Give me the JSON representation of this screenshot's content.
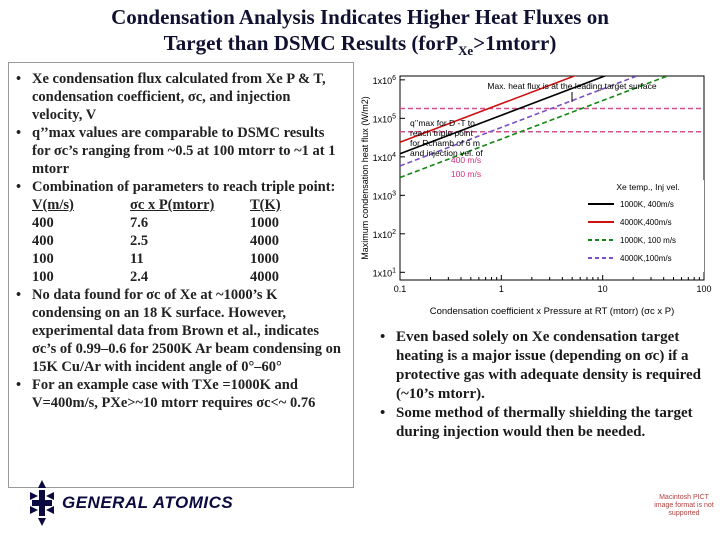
{
  "slide": {
    "title_line1": "Condensation Analysis Indicates Higher Heat Fluxes on",
    "title_line2_pre": "Target than DSMC Results (for",
    "title_line2_P": "P",
    "title_line2_sub": "Xe",
    "title_line2_post": ">1mtorr)"
  },
  "left": {
    "bullet1": "Xe condensation flux calculated from Xe P & T, condensation coefficient, σc, and injection velocity, V",
    "bullet2": "q’’max values are comparable to DSMC results for σc’s ranging from ~0.5 at 100 mtorr to ~1 at 1 mtorr",
    "bullet3": "Combination of parameters to reach triple point:",
    "table": {
      "headers": [
        "V(m/s)",
        "σc x P(mtorr)",
        "T(K)"
      ],
      "rows": [
        [
          "400",
          "7.6",
          "1000"
        ],
        [
          "400",
          "2.5",
          "4000"
        ],
        [
          "100",
          "11",
          "1000"
        ],
        [
          "100",
          "2.4",
          "4000"
        ]
      ]
    },
    "bullet4": "No data found for σc of Xe at ~1000’s K condensing on an 18 K surface. However, experimental data from Brown et al., indicates σc’s of 0.99–0.6 for 2500K Ar beam condensing on 15K Cu/Ar with incident angle of 0°–60°",
    "bullet5": "For an example case with TXe =1000K and V=400m/s, PXe>~10 mtorr requires σc<~ 0.76"
  },
  "right": {
    "bullet1": "Even based solely on Xe condensation target heating is a major issue (depending on σc) if a protective gas with adequate density is required (~10’s mtorr).",
    "bullet2": "Some method of thermally shielding the target during injection would then be needed."
  },
  "logo": {
    "text": "GENERAL ATOMICS"
  },
  "watermark": {
    "text": "Macintosh PICT image format is not supported"
  },
  "chart_data": {
    "type": "line",
    "ylabel": "Maximum condensation heat flux (W/m2)",
    "xlabel": "Condensation coefficient x Pressure at RT (mtorr) (σc x P)",
    "x_scale": "log",
    "y_scale": "log",
    "xlim": [
      0.1,
      100
    ],
    "ylim": [
      1,
      1000000
    ],
    "x_ticks": [
      "0.1",
      "1",
      "10",
      "100"
    ],
    "y_ticks": [
      "1x10^1",
      "1x10^2",
      "1x10^3",
      "1x10^4",
      "1x10^5",
      "1x10^6"
    ],
    "annotations": {
      "top": "Max. heat flux is at the leading target surface",
      "qmax": "q’’max for D -T to reach triple point for Rchamb of 6 m and injection vel. of",
      "v400": "400 m/s",
      "v100": "100 m/s"
    },
    "legend_title": "Xe temp., Inj vel.",
    "series": [
      {
        "name": "1000K, 400m/s",
        "color": "#000000",
        "dash": "solid",
        "x": [
          0.1,
          100
        ],
        "y": [
          12000,
          12000000
        ]
      },
      {
        "name": "4000K,400m/s",
        "color": "#cc1111",
        "dash": "solid",
        "x": [
          0.1,
          100
        ],
        "y": [
          24000,
          24000000
        ]
      },
      {
        "name": "1000K, 100 m/s",
        "color": "#118811",
        "dash": "dashed",
        "x": [
          0.1,
          100
        ],
        "y": [
          2900,
          2900000
        ]
      },
      {
        "name": "4000K,100m/s",
        "color": "#7a4fc4",
        "dash": "dashed",
        "x": [
          0.1,
          100
        ],
        "y": [
          5800,
          5800000
        ]
      }
    ],
    "reference_lines": [
      {
        "label": "400 m/s",
        "y": 180000,
        "color": "#d05090"
      },
      {
        "label": "100 m/s",
        "y": 45000,
        "color": "#d05090"
      }
    ],
    "grid": false,
    "legend_position": "bottom-right"
  }
}
